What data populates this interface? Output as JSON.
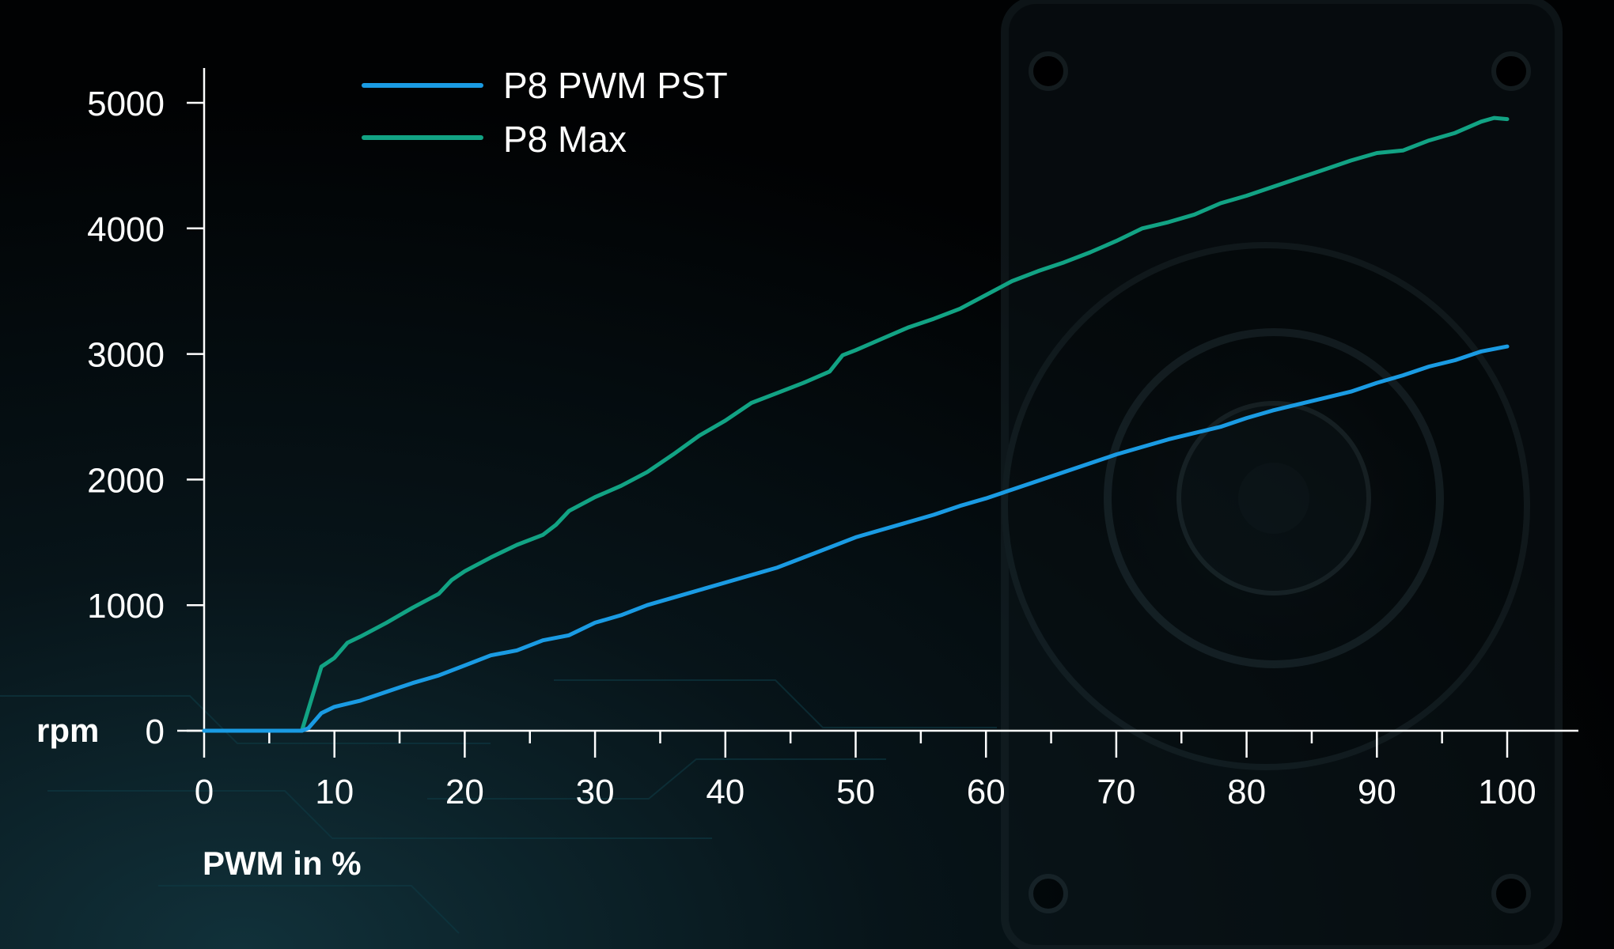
{
  "chart_data": {
    "type": "line",
    "title": "",
    "xlabel": "PWM in %",
    "ylabel": "rpm",
    "xlim": [
      0,
      105
    ],
    "ylim": [
      0,
      5000
    ],
    "x_ticks": [
      0,
      10,
      20,
      30,
      40,
      50,
      60,
      70,
      80,
      90,
      100
    ],
    "x_minor_ticks": [
      5,
      15,
      25,
      35,
      45,
      55,
      65,
      75,
      85,
      95
    ],
    "y_ticks": [
      0,
      1000,
      2000,
      3000,
      4000,
      5000
    ],
    "grid": false,
    "legend_position": "top-left",
    "series": [
      {
        "name": "P8 PWM PST",
        "color": "#1a9be3",
        "x": [
          0,
          7.5,
          8,
          9,
          10,
          12,
          14,
          16,
          18,
          20,
          22,
          24,
          26,
          28,
          30,
          32,
          34,
          36,
          38,
          40,
          42,
          44,
          46,
          48,
          50,
          52,
          54,
          56,
          58,
          60,
          62,
          64,
          66,
          68,
          70,
          72,
          74,
          76,
          78,
          80,
          82,
          84,
          86,
          88,
          90,
          92,
          94,
          96,
          98,
          100
        ],
        "y": [
          0,
          0,
          20,
          140,
          190,
          240,
          310,
          380,
          440,
          520,
          600,
          640,
          720,
          760,
          860,
          920,
          1000,
          1060,
          1120,
          1180,
          1240,
          1300,
          1380,
          1460,
          1540,
          1600,
          1660,
          1720,
          1790,
          1850,
          1920,
          1990,
          2060,
          2130,
          2200,
          2260,
          2320,
          2370,
          2420,
          2490,
          2550,
          2600,
          2650,
          2700,
          2770,
          2830,
          2900,
          2950,
          3020,
          3060
        ]
      },
      {
        "name": "P8 Max",
        "color": "#12a384",
        "x": [
          0,
          7.5,
          9,
          10,
          11,
          12,
          14,
          16,
          18,
          19,
          20,
          22,
          24,
          26,
          27,
          28,
          30,
          32,
          34,
          36,
          38,
          40,
          42,
          44,
          46,
          48,
          49,
          50,
          52,
          54,
          56,
          58,
          60,
          62,
          64,
          66,
          68,
          70,
          72,
          74,
          76,
          78,
          80,
          82,
          84,
          86,
          88,
          90,
          92,
          94,
          96,
          98,
          99,
          100
        ],
        "y": [
          0,
          0,
          510,
          580,
          700,
          750,
          860,
          980,
          1090,
          1200,
          1270,
          1380,
          1480,
          1560,
          1640,
          1750,
          1860,
          1950,
          2060,
          2200,
          2350,
          2470,
          2610,
          2690,
          2770,
          2860,
          2990,
          3030,
          3120,
          3210,
          3280,
          3360,
          3470,
          3580,
          3660,
          3730,
          3810,
          3900,
          4000,
          4050,
          4110,
          4200,
          4260,
          4330,
          4400,
          4470,
          4540,
          4600,
          4620,
          4700,
          4760,
          4850,
          4880,
          4870
        ]
      }
    ]
  }
}
